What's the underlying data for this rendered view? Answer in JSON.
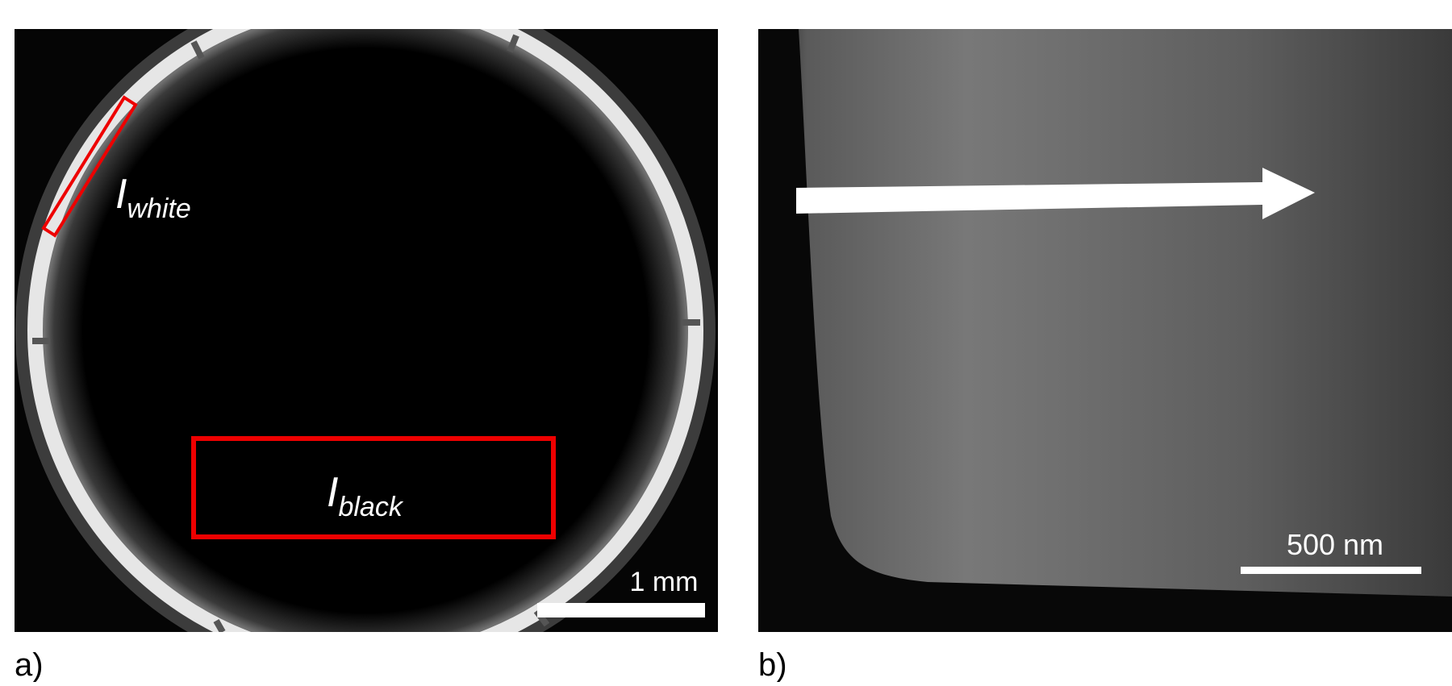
{
  "panels": [
    {
      "label": "a)",
      "scale_bar": "1 mm",
      "regions": [
        {
          "symbol": "I",
          "subscript": "white"
        },
        {
          "symbol": "I",
          "subscript": "black"
        }
      ]
    },
    {
      "label": "b)",
      "scale_bar": "500 nm"
    }
  ]
}
